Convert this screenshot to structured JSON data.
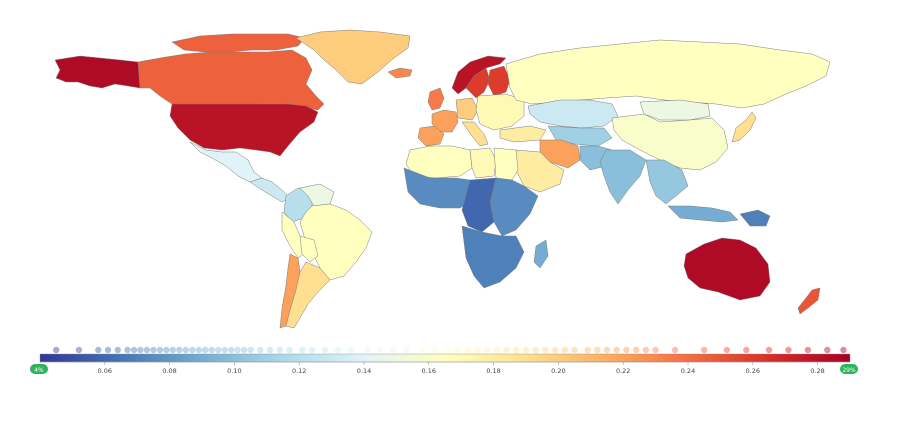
{
  "chart_data": {
    "type": "choropleth",
    "colorscale": [
      "#313695",
      "#4575b4",
      "#74add1",
      "#abd9e9",
      "#e0f3f8",
      "#ffffbf",
      "#fee090",
      "#fdae61",
      "#f46d43",
      "#d73027",
      "#a50026"
    ],
    "range": [
      0.04,
      0.29
    ],
    "ticks": [
      {
        "value": 0.06,
        "label": "0.06"
      },
      {
        "value": 0.08,
        "label": "0.08"
      },
      {
        "value": 0.1,
        "label": "0.10"
      },
      {
        "value": 0.12,
        "label": "0.12"
      },
      {
        "value": 0.14,
        "label": "0.14"
      },
      {
        "value": 0.16,
        "label": "0.16"
      },
      {
        "value": 0.18,
        "label": "0.18"
      },
      {
        "value": 0.2,
        "label": "0.20"
      },
      {
        "value": 0.22,
        "label": "0.22"
      },
      {
        "value": 0.24,
        "label": "0.24"
      },
      {
        "value": 0.26,
        "label": "0.26"
      },
      {
        "value": 0.28,
        "label": "0.28"
      }
    ],
    "handle_min_label": "4%",
    "handle_max_label": "29%",
    "regions": [
      {
        "name": "Alaska",
        "value": 0.285
      },
      {
        "name": "Canada",
        "value": 0.245
      },
      {
        "name": "Canadian Arctic",
        "value": 0.245
      },
      {
        "name": "Greenland",
        "value": 0.2
      },
      {
        "name": "United States",
        "value": 0.28
      },
      {
        "name": "Mexico",
        "value": 0.14
      },
      {
        "name": "Central America",
        "value": 0.13
      },
      {
        "name": "Colombia",
        "value": 0.12
      },
      {
        "name": "Venezuela",
        "value": 0.15
      },
      {
        "name": "Brazil",
        "value": 0.165
      },
      {
        "name": "Peru",
        "value": 0.165
      },
      {
        "name": "Bolivia",
        "value": 0.165
      },
      {
        "name": "Argentina",
        "value": 0.19
      },
      {
        "name": "Chile",
        "value": 0.22
      },
      {
        "name": "Iceland",
        "value": 0.23
      },
      {
        "name": "Norway",
        "value": 0.28
      },
      {
        "name": "Sweden",
        "value": 0.26
      },
      {
        "name": "Finland",
        "value": 0.26
      },
      {
        "name": "United Kingdom",
        "value": 0.235
      },
      {
        "name": "France",
        "value": 0.22
      },
      {
        "name": "Spain",
        "value": 0.22
      },
      {
        "name": "Germany",
        "value": 0.2
      },
      {
        "name": "Italy",
        "value": 0.19
      },
      {
        "name": "Eastern Europe",
        "value": 0.17
      },
      {
        "name": "Russia",
        "value": 0.165
      },
      {
        "name": "Kazakhstan",
        "value": 0.13
      },
      {
        "name": "China",
        "value": 0.16
      },
      {
        "name": "Mongolia",
        "value": 0.15
      },
      {
        "name": "Turkey",
        "value": 0.18
      },
      {
        "name": "Iran",
        "value": 0.22
      },
      {
        "name": "Central Asia",
        "value": 0.11
      },
      {
        "name": "Pakistan",
        "value": 0.1
      },
      {
        "name": "India",
        "value": 0.1
      },
      {
        "name": "Southeast Asia",
        "value": 0.105
      },
      {
        "name": "Japan",
        "value": 0.19
      },
      {
        "name": "Saudi Arabia",
        "value": 0.18
      },
      {
        "name": "North Africa",
        "value": 0.165
      },
      {
        "name": "Libya",
        "value": 0.17
      },
      {
        "name": "Egypt",
        "value": 0.165
      },
      {
        "name": "West Africa",
        "value": 0.075
      },
      {
        "name": "Central Africa",
        "value": 0.06
      },
      {
        "name": "East Africa",
        "value": 0.075
      },
      {
        "name": "Southern Africa",
        "value": 0.07
      },
      {
        "name": "Madagascar",
        "value": 0.09
      },
      {
        "name": "Indonesia",
        "value": 0.09
      },
      {
        "name": "Papua New Guinea",
        "value": 0.07
      },
      {
        "name": "Australia",
        "value": 0.285
      },
      {
        "name": "New Zealand",
        "value": 0.25
      }
    ],
    "samples": [
      0.045,
      0.052,
      0.058,
      0.061,
      0.064,
      0.067,
      0.069,
      0.071,
      0.073,
      0.075,
      0.077,
      0.079,
      0.081,
      0.083,
      0.085,
      0.087,
      0.089,
      0.091,
      0.093,
      0.095,
      0.097,
      0.099,
      0.101,
      0.103,
      0.105,
      0.108,
      0.111,
      0.114,
      0.117,
      0.121,
      0.124,
      0.128,
      0.132,
      0.136,
      0.141,
      0.145,
      0.149,
      0.153,
      0.158,
      0.162,
      0.166,
      0.169,
      0.172,
      0.175,
      0.178,
      0.181,
      0.184,
      0.187,
      0.19,
      0.193,
      0.196,
      0.199,
      0.202,
      0.205,
      0.209,
      0.212,
      0.215,
      0.218,
      0.221,
      0.224,
      0.227,
      0.23,
      0.236,
      0.245,
      0.252,
      0.258,
      0.265,
      0.271,
      0.277,
      0.283,
      0.288
    ]
  }
}
